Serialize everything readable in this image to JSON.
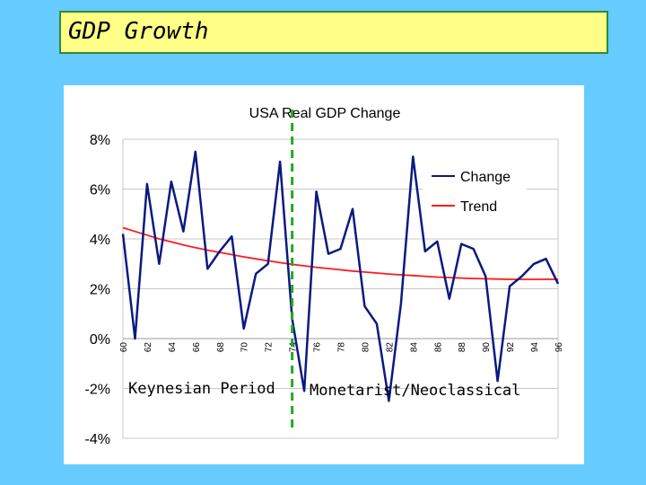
{
  "slide": {
    "title": "GDP Growth",
    "colors": {
      "background": "#66ccff",
      "title_fill": "#ffff88",
      "title_border": "#2e8b3a"
    }
  },
  "annotations": {
    "keynesian": "Keynesian Period",
    "monetarist": "Monetarist/Neoclassical",
    "divider_year": 74,
    "divider_color": "#22aa22"
  },
  "chart_data": {
    "type": "line",
    "title": "USA Real GDP Change",
    "xlabel": "",
    "ylabel": "",
    "ylim": [
      -4,
      8
    ],
    "yticks": [
      8,
      6,
      4,
      2,
      0,
      -2,
      -4
    ],
    "ytick_labels": [
      "8%",
      "6%",
      "4%",
      "2%",
      "0%",
      "-2%",
      "-4%"
    ],
    "xlim": [
      60,
      96
    ],
    "xticks": [
      60,
      62,
      64,
      66,
      68,
      70,
      72,
      74,
      76,
      78,
      80,
      82,
      84,
      86,
      88,
      90,
      92,
      94,
      96
    ],
    "xtick_labels": [
      "60",
      "62",
      "64",
      "66",
      "68",
      "70",
      "72",
      "74",
      "76",
      "78",
      "80",
      "82",
      "84",
      "86",
      "88",
      "90",
      "92",
      "94",
      "96"
    ],
    "grid": true,
    "legend": "top-right",
    "series": [
      {
        "name": "Change",
        "color": "#0a1a80",
        "x": [
          60,
          61,
          62,
          63,
          64,
          65,
          66,
          67,
          68,
          69,
          70,
          71,
          72,
          73,
          74,
          75,
          76,
          77,
          78,
          79,
          80,
          81,
          82,
          83,
          84,
          85,
          86,
          87,
          88,
          89,
          90,
          91,
          92,
          93,
          94,
          95,
          96
        ],
        "values": [
          4.2,
          0.0,
          6.2,
          3.0,
          6.3,
          4.3,
          7.5,
          2.8,
          3.5,
          4.1,
          0.4,
          2.6,
          3.0,
          7.1,
          0.8,
          -2.1,
          5.9,
          3.4,
          3.6,
          5.2,
          1.3,
          0.6,
          -2.5,
          1.4,
          7.3,
          3.5,
          3.9,
          1.6,
          3.8,
          3.6,
          2.5,
          -1.7,
          2.1,
          2.5,
          3.0,
          3.2,
          2.2
        ]
      },
      {
        "name": "Trend",
        "color": "#ff1a1a",
        "x": [
          60,
          61,
          62,
          63,
          64,
          65,
          66,
          67,
          68,
          69,
          70,
          71,
          72,
          73,
          74,
          75,
          76,
          77,
          78,
          79,
          80,
          81,
          82,
          83,
          84,
          85,
          86,
          87,
          88,
          89,
          90,
          91,
          92,
          93,
          94,
          95,
          96
        ],
        "values": [
          4.45,
          4.3,
          4.15,
          4.0,
          3.88,
          3.76,
          3.65,
          3.55,
          3.46,
          3.37,
          3.28,
          3.2,
          3.12,
          3.05,
          2.98,
          2.92,
          2.86,
          2.81,
          2.76,
          2.71,
          2.67,
          2.63,
          2.59,
          2.56,
          2.53,
          2.5,
          2.47,
          2.45,
          2.43,
          2.41,
          2.4,
          2.39,
          2.38,
          2.38,
          2.38,
          2.38,
          2.38
        ]
      }
    ]
  }
}
